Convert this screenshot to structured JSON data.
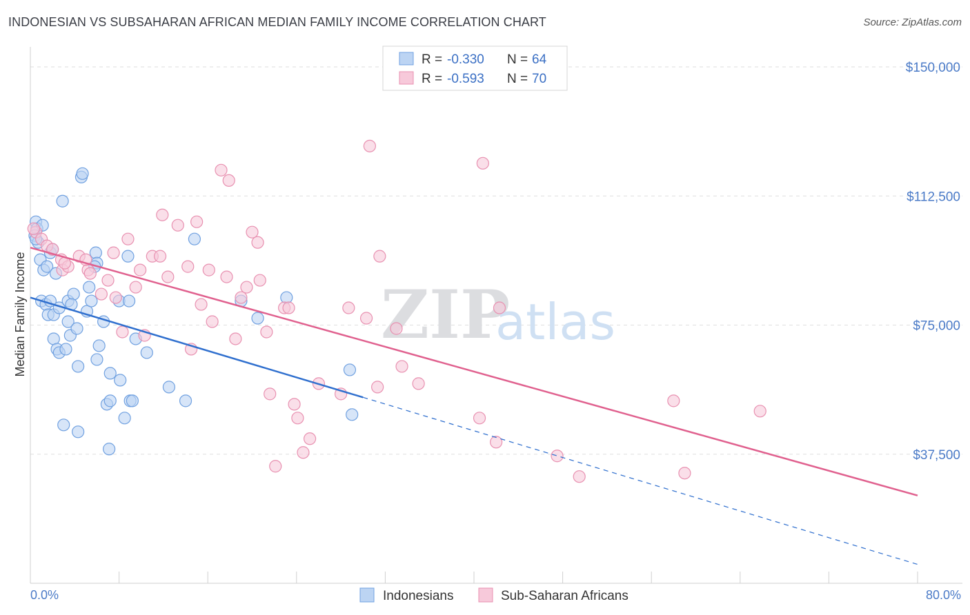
{
  "title": "INDONESIAN VS SUBSAHARAN AFRICAN MEDIAN FAMILY INCOME CORRELATION CHART",
  "source": "Source: ZipAtlas.com",
  "watermark": {
    "zip": "ZIP",
    "atlas": "atlas"
  },
  "chart_data": {
    "type": "scatter",
    "title": "INDONESIAN VS SUBSAHARAN AFRICAN MEDIAN FAMILY INCOME CORRELATION CHART",
    "xlabel": "",
    "ylabel": "Median Family Income",
    "xlim": [
      0,
      80
    ],
    "ylim": [
      0,
      155000
    ],
    "x_tick_labels": [
      "0.0%",
      "80.0%"
    ],
    "y_ticks": [
      37500,
      75000,
      112500,
      150000
    ],
    "y_tick_labels": [
      "$37,500",
      "$75,000",
      "$112,500",
      "$150,000"
    ],
    "grid": true,
    "legend_position": "top-center",
    "stats": [
      {
        "series": "Indonesians",
        "r_label": "R =",
        "r": "-0.330",
        "n_label": "N =",
        "n": "64"
      },
      {
        "series": "Sub-Saharan Africans",
        "r_label": "R =",
        "r": "-0.593",
        "n_label": "N =",
        "n": "70"
      }
    ],
    "series": [
      {
        "name": "Indonesians",
        "color": "#6fa0e0",
        "fill": "#bcd4f3",
        "line_color": "#2f6fce",
        "trend": {
          "x0": 0,
          "y0": 83000,
          "x1": 30,
          "y1": 54000,
          "dash_to_x": 80,
          "dash_to_y": 5500
        },
        "points": [
          [
            0.5,
            105000
          ],
          [
            0.6,
            103000
          ],
          [
            0.4,
            101000
          ],
          [
            0.7,
            99000
          ],
          [
            0.9,
            94000
          ],
          [
            1.2,
            91000
          ],
          [
            1.5,
            92000
          ],
          [
            1.8,
            96000
          ],
          [
            2.3,
            90000
          ],
          [
            4.6,
            118000
          ],
          [
            4.7,
            119000
          ],
          [
            2.9,
            111000
          ],
          [
            5.9,
            96000
          ],
          [
            6.0,
            93000
          ],
          [
            8.8,
            95000
          ],
          [
            14.8,
            100000
          ],
          [
            1.0,
            82000
          ],
          [
            1.4,
            81000
          ],
          [
            1.6,
            78000
          ],
          [
            1.8,
            82000
          ],
          [
            2.1,
            78000
          ],
          [
            2.6,
            80000
          ],
          [
            3.4,
            82000
          ],
          [
            3.9,
            84000
          ],
          [
            3.7,
            81000
          ],
          [
            5.1,
            79000
          ],
          [
            5.3,
            86000
          ],
          [
            5.5,
            82000
          ],
          [
            6.6,
            76000
          ],
          [
            8.0,
            82000
          ],
          [
            8.9,
            82000
          ],
          [
            2.1,
            71000
          ],
          [
            2.4,
            68000
          ],
          [
            2.6,
            67000
          ],
          [
            3.2,
            68000
          ],
          [
            3.4,
            76000
          ],
          [
            3.6,
            72000
          ],
          [
            4.2,
            74000
          ],
          [
            6.2,
            69000
          ],
          [
            6.0,
            65000
          ],
          [
            7.2,
            61000
          ],
          [
            8.1,
            59000
          ],
          [
            9.5,
            71000
          ],
          [
            10.5,
            67000
          ],
          [
            4.3,
            63000
          ],
          [
            6.9,
            52000
          ],
          [
            7.2,
            53000
          ],
          [
            8.5,
            48000
          ],
          [
            9.0,
            53000
          ],
          [
            9.2,
            53000
          ],
          [
            12.5,
            57000
          ],
          [
            14.0,
            53000
          ],
          [
            3.0,
            46000
          ],
          [
            4.3,
            44000
          ],
          [
            7.1,
            39000
          ],
          [
            19.0,
            82000
          ],
          [
            20.5,
            77000
          ],
          [
            23.1,
            83000
          ],
          [
            28.8,
            62000
          ],
          [
            29.0,
            49000
          ],
          [
            0.5,
            100000
          ],
          [
            2.0,
            97000
          ],
          [
            1.1,
            104000
          ],
          [
            5.8,
            92000
          ]
        ]
      },
      {
        "name": "Sub-Saharan Africans",
        "color": "#e890b0",
        "fill": "#f7c9da",
        "line_color": "#e0608e",
        "trend": {
          "x0": 0,
          "y0": 97500,
          "x1": 80,
          "y1": 25500
        },
        "points": [
          [
            0.5,
            102000
          ],
          [
            1.0,
            100000
          ],
          [
            1.5,
            98000
          ],
          [
            2.0,
            97000
          ],
          [
            2.8,
            94000
          ],
          [
            2.9,
            91000
          ],
          [
            3.4,
            92000
          ],
          [
            4.4,
            95000
          ],
          [
            5.2,
            91000
          ],
          [
            5.0,
            94000
          ],
          [
            5.4,
            90000
          ],
          [
            6.4,
            84000
          ],
          [
            7.0,
            88000
          ],
          [
            7.5,
            96000
          ],
          [
            7.7,
            83000
          ],
          [
            8.3,
            73000
          ],
          [
            8.8,
            100000
          ],
          [
            9.5,
            86000
          ],
          [
            9.9,
            91000
          ],
          [
            10.3,
            72000
          ],
          [
            11.0,
            95000
          ],
          [
            11.7,
            95000
          ],
          [
            11.9,
            107000
          ],
          [
            12.4,
            89000
          ],
          [
            13.3,
            104000
          ],
          [
            14.2,
            92000
          ],
          [
            14.5,
            68000
          ],
          [
            15.0,
            105000
          ],
          [
            15.4,
            81000
          ],
          [
            16.1,
            91000
          ],
          [
            16.4,
            76000
          ],
          [
            17.2,
            120000
          ],
          [
            17.7,
            89000
          ],
          [
            17.9,
            117000
          ],
          [
            18.5,
            71000
          ],
          [
            19.0,
            83000
          ],
          [
            19.5,
            86000
          ],
          [
            20.0,
            102000
          ],
          [
            20.5,
            99000
          ],
          [
            20.7,
            88000
          ],
          [
            21.3,
            73000
          ],
          [
            21.6,
            55000
          ],
          [
            22.1,
            34000
          ],
          [
            22.9,
            80000
          ],
          [
            23.3,
            80000
          ],
          [
            23.8,
            52000
          ],
          [
            24.1,
            48000
          ],
          [
            24.6,
            38000
          ],
          [
            25.2,
            42000
          ],
          [
            26.0,
            58000
          ],
          [
            28.0,
            55000
          ],
          [
            28.7,
            80000
          ],
          [
            30.3,
            77000
          ],
          [
            30.6,
            127000
          ],
          [
            31.3,
            57000
          ],
          [
            31.5,
            95000
          ],
          [
            33.0,
            74000
          ],
          [
            33.5,
            63000
          ],
          [
            35.0,
            58000
          ],
          [
            40.5,
            48000
          ],
          [
            40.8,
            122000
          ],
          [
            42.0,
            41000
          ],
          [
            42.3,
            80000
          ],
          [
            47.5,
            37000
          ],
          [
            49.5,
            31000
          ],
          [
            58.0,
            53000
          ],
          [
            59.0,
            32000
          ],
          [
            65.8,
            50000
          ],
          [
            0.3,
            103000
          ],
          [
            3.1,
            93000
          ]
        ]
      }
    ]
  }
}
